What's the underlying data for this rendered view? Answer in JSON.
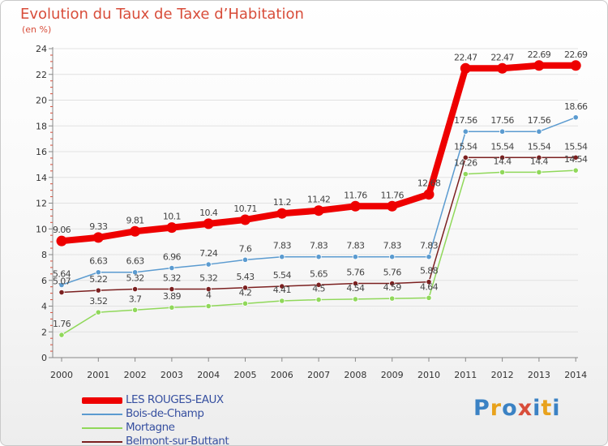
{
  "chart_data": {
    "type": "line",
    "title": "Evolution du Taux de Taxe d’Habitation",
    "subtitle": "(en %)",
    "xlabel": "",
    "ylabel": "",
    "ylim": [
      0,
      24
    ],
    "yticks": [
      "0",
      "2",
      "4",
      "6",
      "8",
      "10",
      "12",
      "14",
      "16",
      "18",
      "20",
      "22",
      "24"
    ],
    "categories": [
      "2000",
      "2001",
      "2002",
      "2003",
      "2004",
      "2005",
      "2006",
      "2007",
      "2008",
      "2009",
      "2010",
      "2011",
      "2012",
      "2013",
      "2014"
    ],
    "series": [
      {
        "name": "LES ROUGES-EAUX",
        "color": "#ee0000",
        "values": [
          9.06,
          9.33,
          9.81,
          10.1,
          10.4,
          10.71,
          11.2,
          11.42,
          11.76,
          11.76,
          12.68,
          22.47,
          22.47,
          22.69,
          22.69
        ],
        "labels": [
          "9.06",
          "9.33",
          "9.81",
          "10.1",
          "10.4",
          "10.71",
          "11.2",
          "11.42",
          "11.76",
          "11.76",
          "12.68",
          "22.47",
          "22.47",
          "22.69",
          "22.69"
        ]
      },
      {
        "name": "Bois-de-Champ",
        "color": "#5b9bd0",
        "values": [
          5.64,
          6.63,
          6.63,
          6.96,
          7.24,
          7.6,
          7.83,
          7.83,
          7.83,
          7.83,
          7.83,
          17.56,
          17.56,
          17.56,
          18.66
        ],
        "labels": [
          "5.64",
          "6.63",
          "6.63",
          "6.96",
          "7.24",
          "7.6",
          "7.83",
          "7.83",
          "7.83",
          "7.83",
          "7.83",
          "17.56",
          "17.56",
          "17.56",
          "18.66"
        ]
      },
      {
        "name": "Mortagne",
        "color": "#90d85a",
        "values": [
          1.76,
          3.52,
          3.7,
          3.89,
          4,
          4.2,
          4.41,
          4.5,
          4.54,
          4.59,
          4.64,
          14.26,
          14.4,
          14.4,
          14.54
        ],
        "labels": [
          "1.76",
          "3.52",
          "3.7",
          "3.89",
          "4",
          "4.2",
          "4.41",
          "4.5",
          "4.54",
          "4.59",
          "4.64",
          "14.26",
          "14.4",
          "14.4",
          "14.54"
        ]
      },
      {
        "name": "Belmont-sur-Buttant",
        "color": "#7b2020",
        "values": [
          5.07,
          5.22,
          5.32,
          5.32,
          5.32,
          5.43,
          5.54,
          5.65,
          5.76,
          5.76,
          5.88,
          15.54,
          15.54,
          15.54,
          15.54
        ],
        "labels": [
          "5.07",
          "5.22",
          "5.32",
          "5.32",
          "5.32",
          "5.43",
          "5.54",
          "5.65",
          "5.76",
          "5.76",
          "5.88",
          "15.54",
          "15.54",
          "15.54",
          "15.54"
        ]
      }
    ]
  },
  "logo": {
    "letters": [
      "P",
      "r",
      "o",
      "x",
      "i",
      "t",
      "i"
    ],
    "colors": [
      "#3b82c4",
      "#e8a21c",
      "#3b82c4",
      "#d84d3a",
      "#3b82c4",
      "#e8a21c",
      "#3b82c4"
    ]
  }
}
